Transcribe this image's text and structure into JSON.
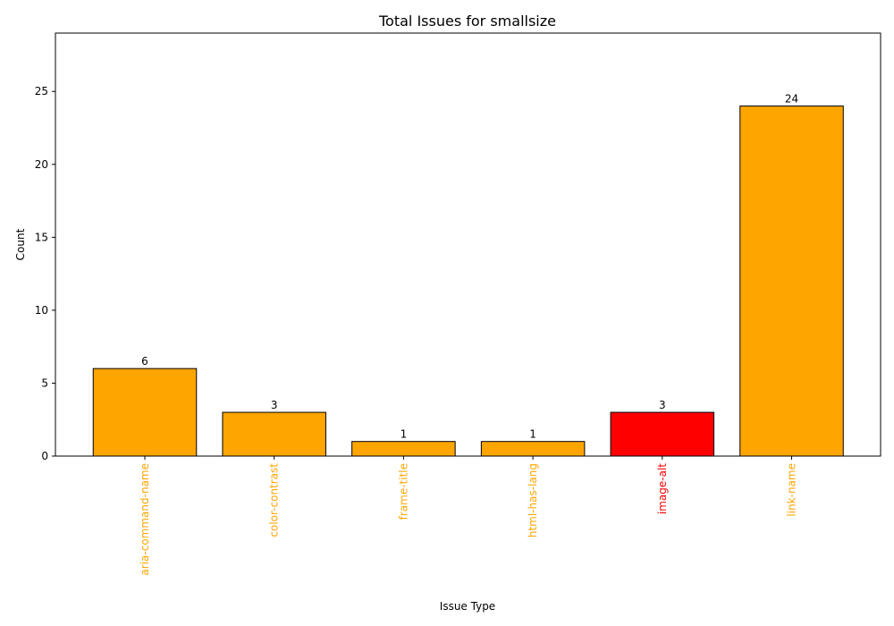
{
  "chart_data": {
    "type": "bar",
    "title": "Total Issues for smallsize",
    "xlabel": "Issue Type",
    "ylabel": "Count",
    "ylim": [
      0,
      29
    ],
    "yticks": [
      0,
      5,
      10,
      15,
      20,
      25
    ],
    "grid": false,
    "legend": "none",
    "categories": [
      "aria-command-name",
      "color-contrast",
      "frame-title",
      "html-has-lang",
      "image-alt",
      "link-name"
    ],
    "values": [
      6,
      3,
      1,
      1,
      3,
      24
    ],
    "severity": [
      "serious",
      "serious",
      "serious",
      "serious",
      "critical",
      "serious"
    ],
    "colors": {
      "serious": "#FFA500",
      "critical": "#FF0000",
      "edge": "#000000"
    }
  }
}
